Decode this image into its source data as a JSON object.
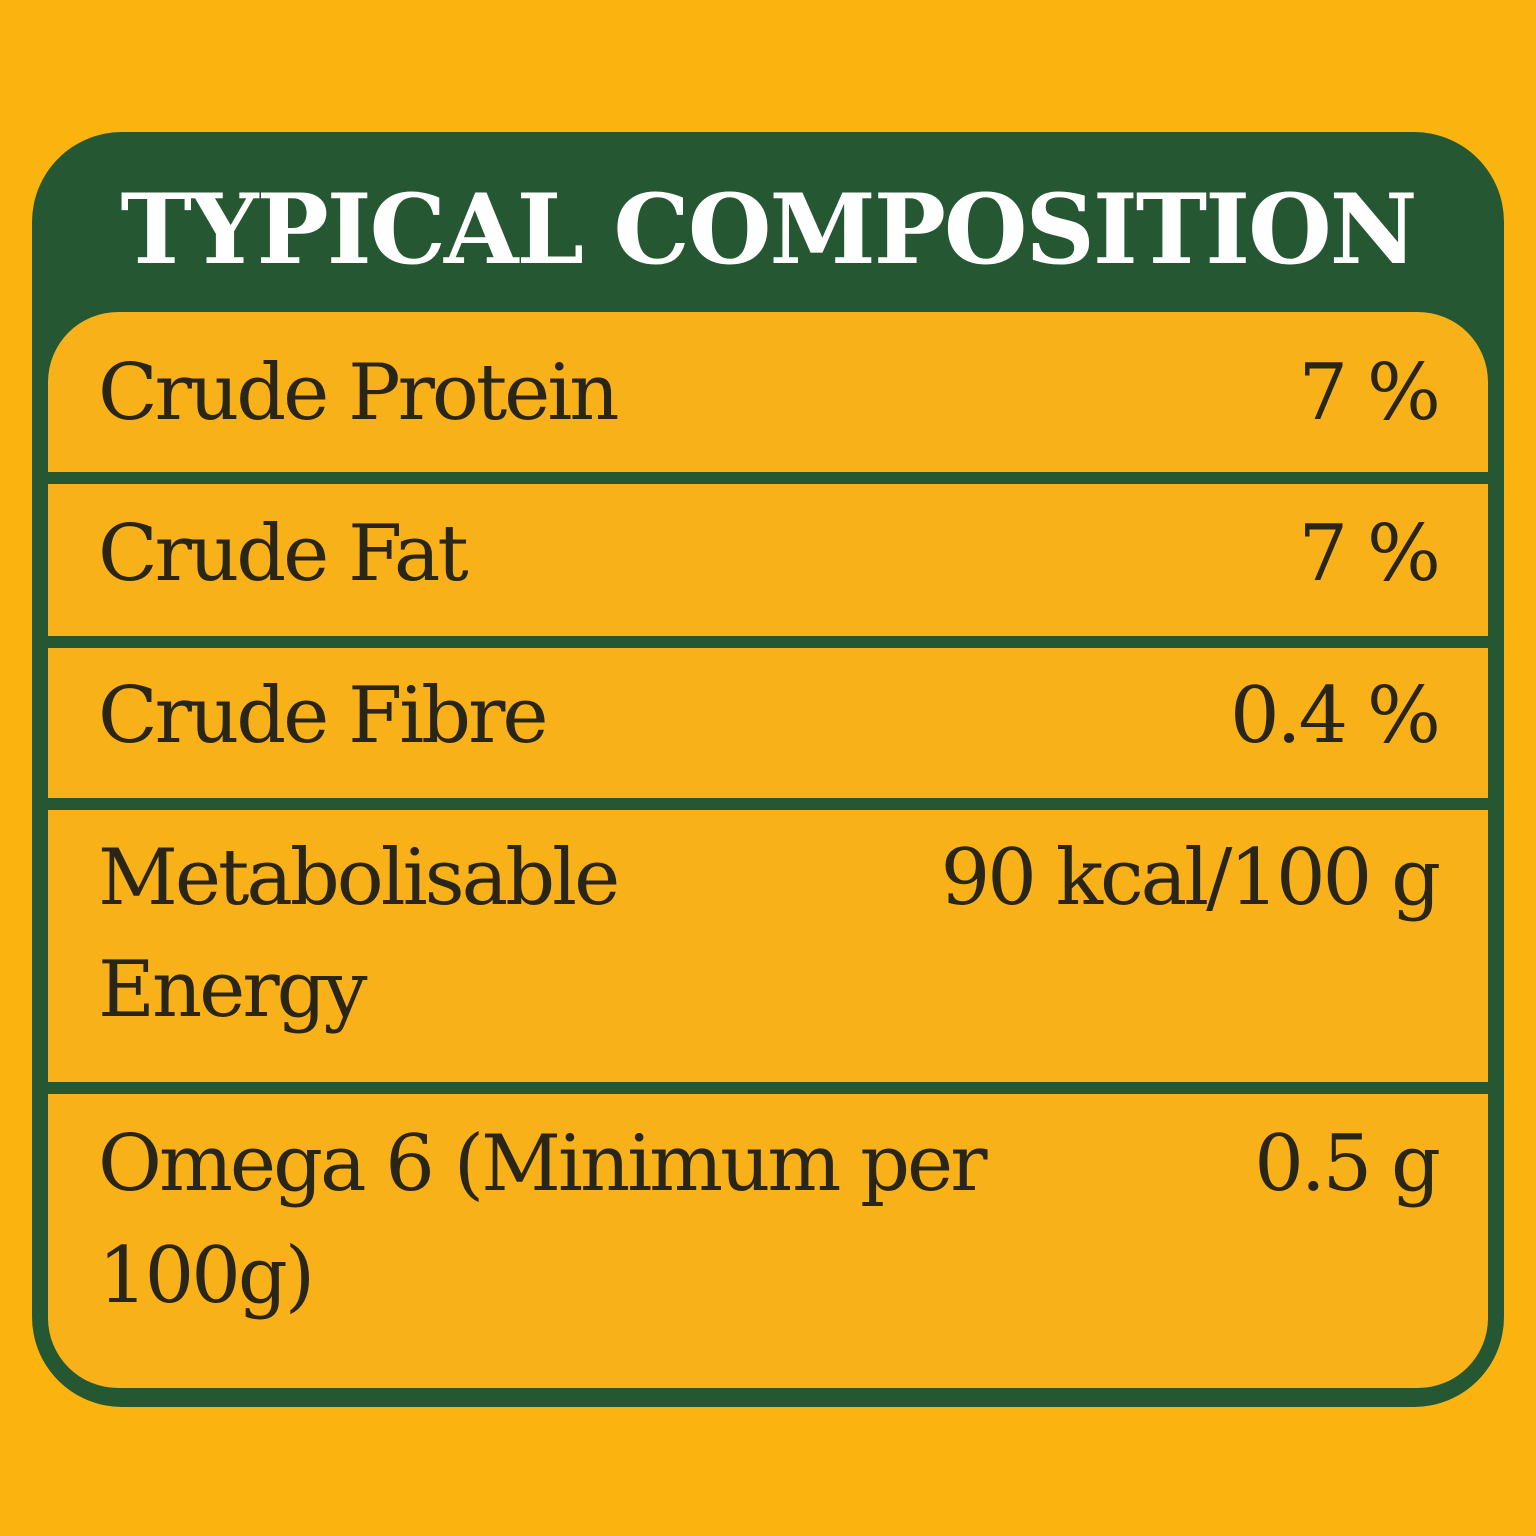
{
  "header": {
    "title": "TYPICAL COMPOSITION"
  },
  "table": {
    "rows": [
      [
        "Crude Protein",
        "7 %"
      ],
      [
        "Crude Fat",
        "7 %"
      ],
      [
        "Crude Fibre",
        "0.4 %"
      ],
      [
        "Metabolisable Energy",
        "90 kcal/100 g"
      ],
      [
        "Omega 6 (Minimum per 100g)",
        "0.5 g"
      ]
    ]
  }
}
